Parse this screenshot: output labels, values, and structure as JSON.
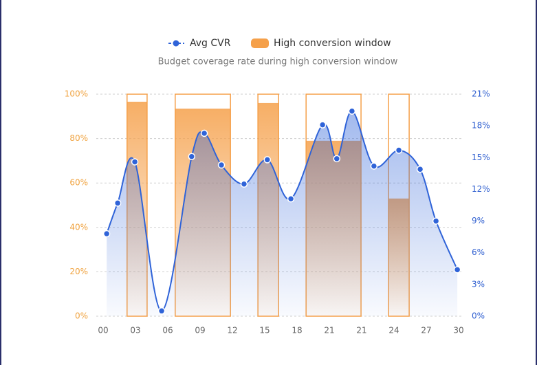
{
  "chart_data": {
    "type": "combo",
    "subtitle": "Budget coverage rate during high conversion window",
    "xlim": [
      0,
      11
    ],
    "xticks": [
      {
        "value": 0,
        "label": "00"
      },
      {
        "value": 1,
        "label": "03"
      },
      {
        "value": 2,
        "label": "06"
      },
      {
        "value": 3,
        "label": "09"
      },
      {
        "value": 4,
        "label": "12"
      },
      {
        "value": 5,
        "label": "15"
      },
      {
        "value": 6,
        "label": "18"
      },
      {
        "value": 7,
        "label": "21"
      },
      {
        "value": 8,
        "label": "21"
      },
      {
        "value": 9,
        "label": "24"
      },
      {
        "value": 10,
        "label": "27"
      },
      {
        "value": 11,
        "label": "30"
      }
    ],
    "ylim": [
      0,
      100
    ],
    "yticks": [
      {
        "value": 0,
        "label": "0%"
      },
      {
        "value": 20,
        "label": "20%"
      },
      {
        "value": 40,
        "label": "40%"
      },
      {
        "value": 60,
        "label": "60%"
      },
      {
        "value": 80,
        "label": "80%"
      },
      {
        "value": 100,
        "label": "100%"
      }
    ],
    "y2lim": [
      0,
      21
    ],
    "y2ticks": [
      {
        "value": 0,
        "label": "0%"
      },
      {
        "value": 3,
        "label": "3%"
      },
      {
        "value": 6,
        "label": "6%"
      },
      {
        "value": 9,
        "label": "9%"
      },
      {
        "value": 12,
        "label": "12%"
      },
      {
        "value": 15,
        "label": "15%"
      },
      {
        "value": 18,
        "label": "18%"
      },
      {
        "value": 21,
        "label": "21%"
      }
    ],
    "grid": true,
    "series": [
      {
        "name": "High conversion window",
        "type": "bar",
        "color": "#f5a04a",
        "axis": "y",
        "x_start": [
          0.74,
          2.23,
          4.79,
          6.28,
          8.83
        ],
        "x_end": [
          1.36,
          3.94,
          5.43,
          7.98,
          9.47
        ],
        "values": [
          96.6,
          93.5,
          96,
          79,
          53
        ]
      },
      {
        "name": "Avg CVR",
        "type": "line",
        "color": "#2f63d8",
        "axis": "y2",
        "x": [
          0.11,
          0.45,
          0.98,
          1.81,
          2.74,
          3.13,
          3.66,
          4.36,
          5.08,
          5.81,
          6.79,
          7.23,
          7.7,
          8.38,
          9.15,
          9.81,
          10.3,
          10.96
        ],
        "values": [
          7.8,
          10.7,
          14.6,
          0.5,
          15.1,
          17.3,
          14.3,
          12.5,
          14.8,
          11.1,
          18.1,
          14.9,
          19.4,
          14.2,
          15.7,
          13.9,
          9.0,
          4.4
        ]
      }
    ]
  }
}
